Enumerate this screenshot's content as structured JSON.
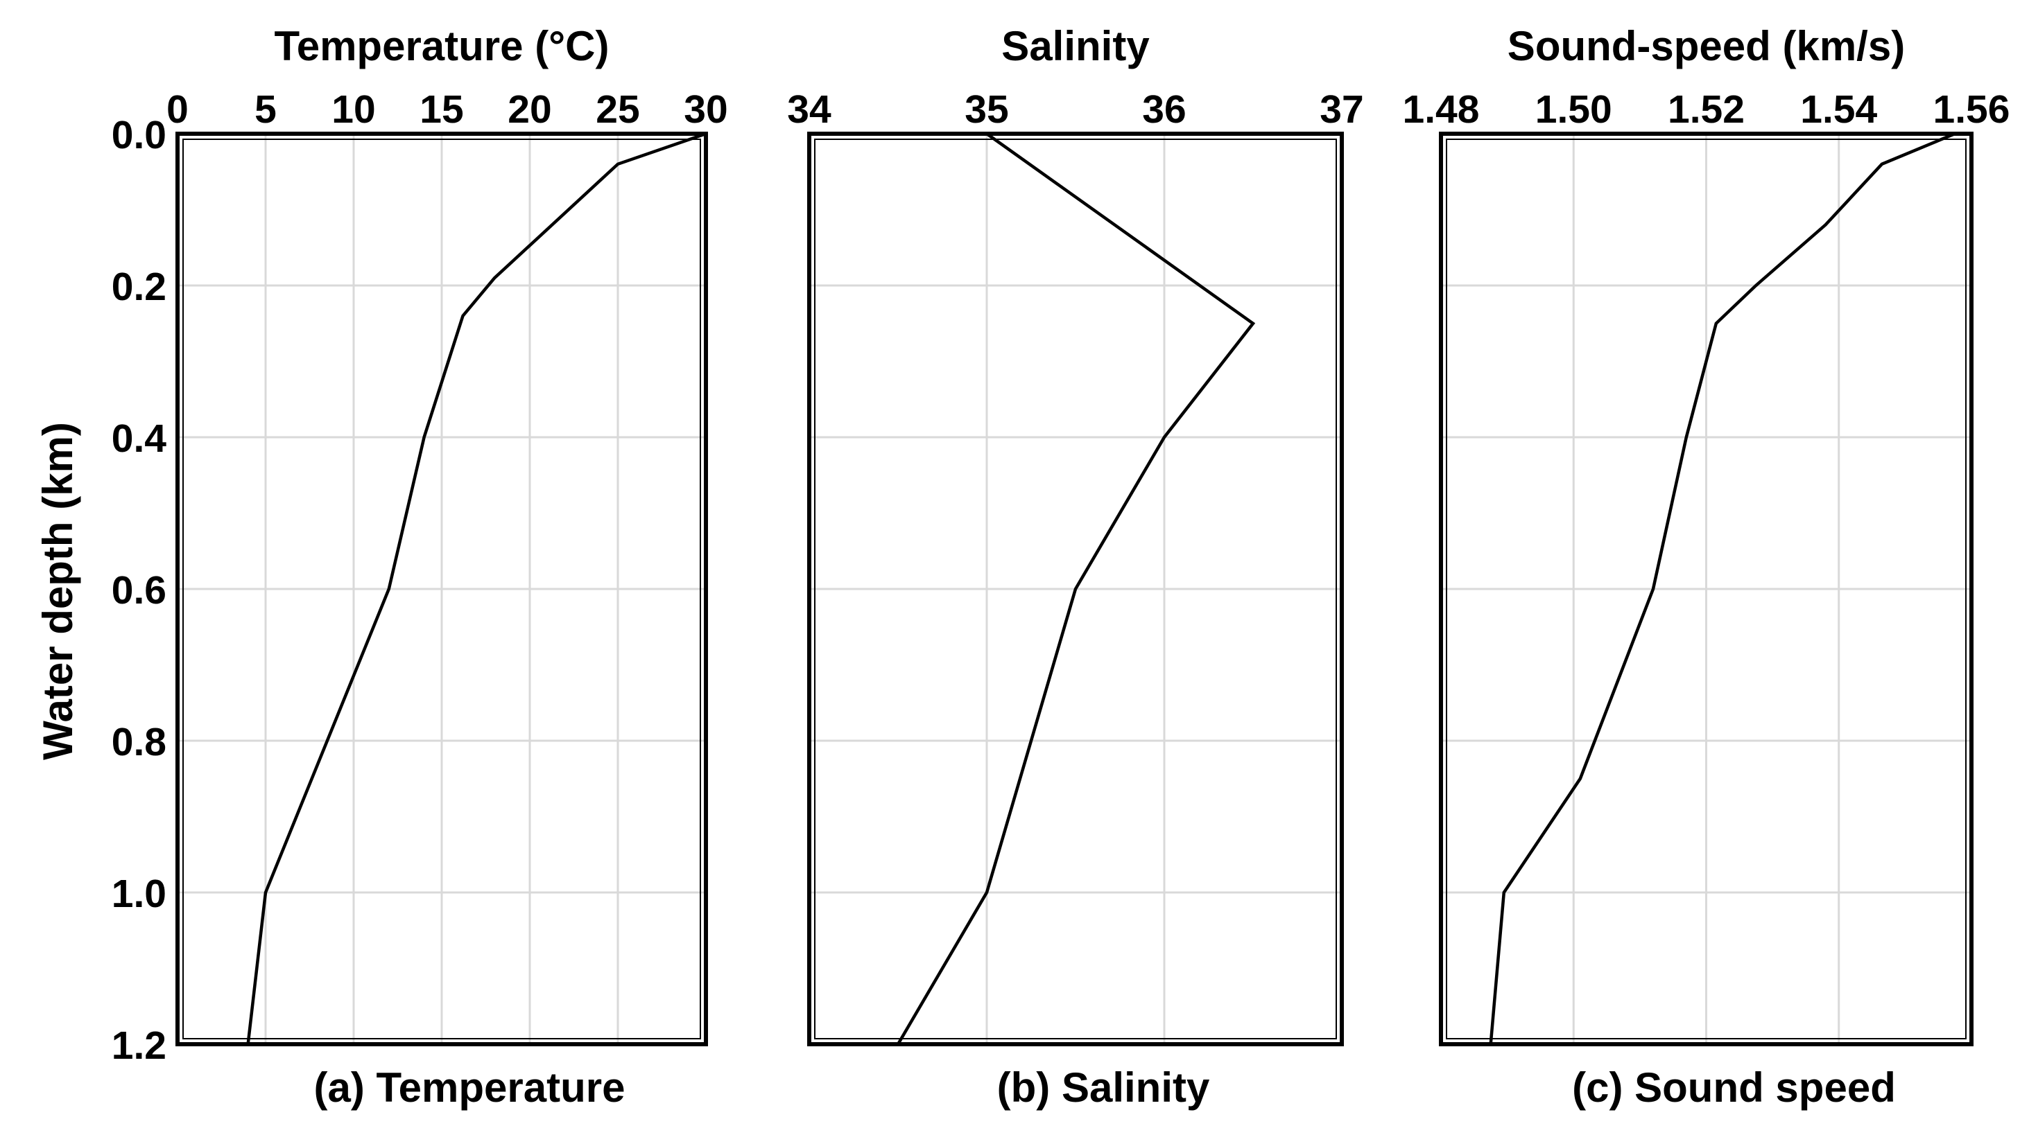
{
  "y_axis_label": "Water depth (km)",
  "chart_data": [
    {
      "type": "line",
      "title": "Temperature (°C)",
      "caption": "(a) Temperature",
      "xlim": [
        0,
        30
      ],
      "x_ticks": [
        "0",
        "5",
        "10",
        "15",
        "20",
        "25",
        "30"
      ],
      "ylim": [
        0,
        1.2
      ],
      "y_ticks": [
        "0.0",
        "0.2",
        "0.4",
        "0.6",
        "0.8",
        "1.0",
        "1.2"
      ],
      "y_inverted": true,
      "grid": true,
      "series": [
        {
          "x": [
            30,
            25,
            18,
            16.2,
            14,
            12,
            5,
            4
          ],
          "y": [
            0,
            0.04,
            0.19,
            0.24,
            0.4,
            0.6,
            1.0,
            1.2
          ]
        }
      ]
    },
    {
      "type": "line",
      "title": "Salinity",
      "caption": "(b) Salinity",
      "xlim": [
        34,
        37
      ],
      "x_ticks": [
        "34",
        "35",
        "36",
        "37"
      ],
      "ylim": [
        0,
        1.2
      ],
      "y_inverted": true,
      "grid": true,
      "series": [
        {
          "x": [
            35,
            36.5,
            36,
            35.5,
            35,
            34.5
          ],
          "y": [
            0,
            0.25,
            0.4,
            0.6,
            1.0,
            1.2
          ]
        }
      ]
    },
    {
      "type": "line",
      "title": "Sound-speed (km/s)",
      "caption": "(c) Sound speed",
      "xlim": [
        1.48,
        1.56
      ],
      "x_ticks": [
        "1.48",
        "1.50",
        "1.52",
        "1.54",
        "1.56"
      ],
      "ylim": [
        0,
        1.2
      ],
      "y_inverted": true,
      "grid": true,
      "series": [
        {
          "x": [
            1.5575,
            1.5465,
            1.538,
            1.5275,
            1.5215,
            1.517,
            1.512,
            1.501,
            1.4895,
            1.4875
          ],
          "y": [
            0,
            0.04,
            0.12,
            0.2,
            0.25,
            0.4,
            0.6,
            0.85,
            1.0,
            1.2
          ]
        }
      ]
    }
  ]
}
